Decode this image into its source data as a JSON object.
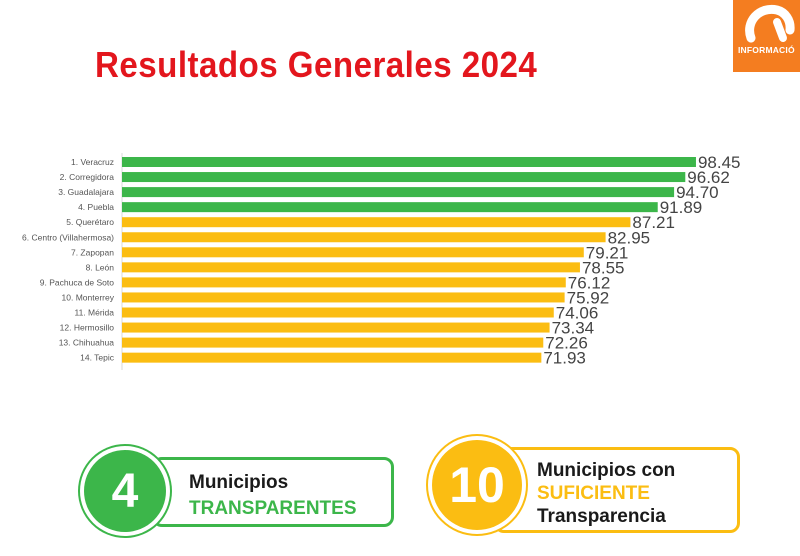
{
  "header": {
    "title": "Resultados Generales 2024"
  },
  "logo": {
    "text": "INFORMACIÓ"
  },
  "colors": {
    "title": "#e3161d",
    "green": "#3cb64a",
    "yellow": "#fbbd12",
    "accent_orange": "#f47d20",
    "label_text": "#555555",
    "value_text": "#444444",
    "dark_text": "#1a1a1a"
  },
  "chart_data": {
    "type": "bar",
    "orientation": "horizontal",
    "title": "Resultados Generales 2024",
    "xlim": [
      0,
      100
    ],
    "grid": false,
    "categories": [
      "1. Veracruz",
      "2. Corregidora",
      "3. Guadalajara",
      "4. Puebla",
      "5. Querétaro",
      "6. Centro (Villahermosa)",
      "7. Zapopan",
      "8. León",
      "9. Pachuca de Soto",
      "10. Monterrey",
      "11. Mérida",
      "12. Hermosillo",
      "13. Chihuahua",
      "14. Tepic"
    ],
    "values": [
      98.45,
      96.62,
      94.7,
      91.89,
      87.21,
      82.95,
      79.21,
      78.55,
      76.12,
      75.92,
      74.06,
      73.34,
      72.26,
      71.93
    ],
    "value_labels": [
      "98.45",
      "96.62",
      "94.70",
      "91.89",
      "87.21",
      "82.95",
      "79.21",
      "78.55",
      "76.12",
      "75.92",
      "74.06",
      "73.34",
      "72.26",
      "71.93"
    ],
    "groups": [
      "green",
      "green",
      "green",
      "green",
      "yellow",
      "yellow",
      "yellow",
      "yellow",
      "yellow",
      "yellow",
      "yellow",
      "yellow",
      "yellow",
      "yellow"
    ]
  },
  "summary": {
    "transparentes": {
      "number": "4",
      "line1": "Municipios",
      "line2": "TRANSPARENTES"
    },
    "suficiente": {
      "number": "10",
      "line1": "Municipios con",
      "line2": "SUFICIENTE",
      "line3": "Transparencia"
    }
  }
}
